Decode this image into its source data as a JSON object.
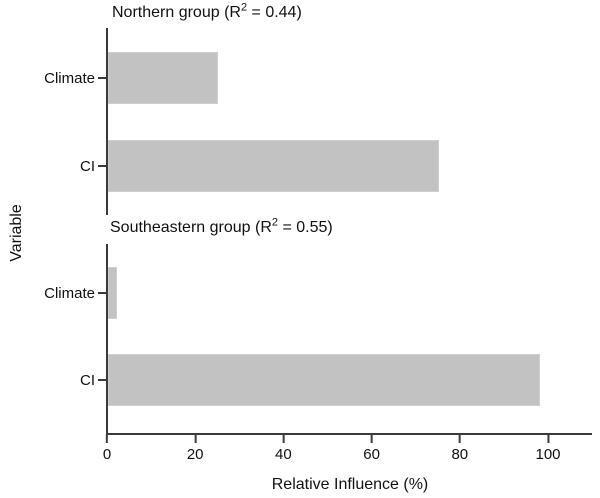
{
  "chart_data": {
    "type": "bar",
    "orientation": "horizontal",
    "xlabel": "Relative Influence (%)",
    "ylabel": "Variable",
    "xticks": [
      "0",
      "20",
      "40",
      "60",
      "80",
      "100"
    ],
    "xlim": [
      0,
      110
    ],
    "grid": false,
    "legend": "none",
    "bar_color": "#c2c2c2",
    "axis_color": "#3a3a3a",
    "panels": [
      {
        "title_prefix": "Northern group (R",
        "title_sup": "2",
        "title_suffix": " = 0.44)",
        "group": "Northern group",
        "r_squared": "0.44",
        "categories": [
          "Climate",
          "CI"
        ],
        "values": [
          25,
          75
        ]
      },
      {
        "title_prefix": "Southeastern group (R",
        "title_sup": "2",
        "title_suffix": " = 0.55)",
        "group": "Southeastern group",
        "r_squared": "0.55",
        "categories": [
          "Climate",
          "CI"
        ],
        "values": [
          2,
          98
        ]
      }
    ]
  }
}
